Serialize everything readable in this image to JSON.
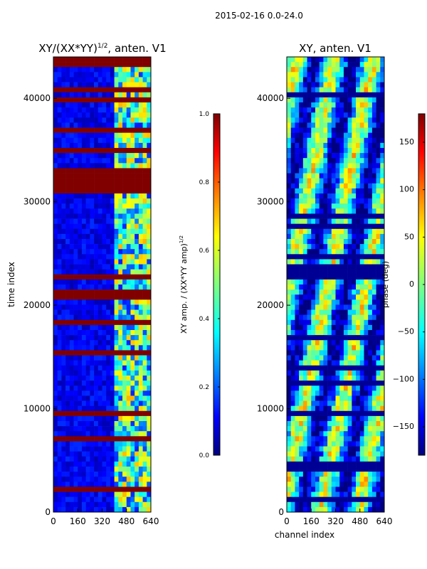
{
  "suptitle": "2015-02-16 0.0-24.0",
  "chart_data": [
    {
      "type": "heatmap",
      "title_prefix": "XY/(XX*YY)",
      "title_exponent": "1/2",
      "title_suffix": ", anten. V1",
      "xlabel": "",
      "ylabel": "time index",
      "xlim": [
        0,
        640
      ],
      "ylim": [
        0,
        44000
      ],
      "xticks": [
        "0",
        "160",
        "320",
        "480",
        "640"
      ],
      "xtick_values": [
        0,
        160,
        320,
        480,
        640
      ],
      "yticks": [
        "0",
        "10000",
        "20000",
        "30000",
        "40000"
      ],
      "ytick_values": [
        0,
        10000,
        20000,
        30000,
        40000
      ],
      "flag_bands": [
        {
          "from": 9400,
          "to": 9800
        },
        {
          "from": 31000,
          "to": 33000
        },
        {
          "from": 34500,
          "to": 35200
        },
        {
          "from": 36700,
          "to": 37200
        },
        {
          "from": 39500,
          "to": 40000
        },
        {
          "from": 43000,
          "to": 43400
        }
      ],
      "colorbar": {
        "label": "XY amp. / (XX*YY amp)",
        "label_exponent": "1/2",
        "min": 0.0,
        "max": 1.0,
        "ticks": [
          "0.0",
          "0.2",
          "0.4",
          "0.6",
          "0.8",
          "1.0"
        ],
        "tick_values": [
          0.0,
          0.2,
          0.4,
          0.6,
          0.8,
          1.0
        ]
      }
    },
    {
      "type": "heatmap",
      "title": "XY, anten. V1",
      "xlabel": "channel index",
      "ylabel": "",
      "xlim": [
        0,
        640
      ],
      "ylim": [
        0,
        44000
      ],
      "xticks": [
        "0",
        "160",
        "320",
        "480",
        "640"
      ],
      "xtick_values": [
        0,
        160,
        320,
        480,
        640
      ],
      "yticks": [
        "0",
        "10000",
        "20000",
        "30000",
        "40000"
      ],
      "ytick_values": [
        0,
        10000,
        20000,
        30000,
        40000
      ],
      "colorbar": {
        "label": "phase (deg)",
        "min": -180,
        "max": 180,
        "ticks": [
          "−150",
          "−100",
          "−50",
          "0",
          "50",
          "100",
          "150"
        ],
        "tick_values": [
          -150,
          -100,
          -50,
          0,
          50,
          100,
          150
        ]
      }
    }
  ]
}
